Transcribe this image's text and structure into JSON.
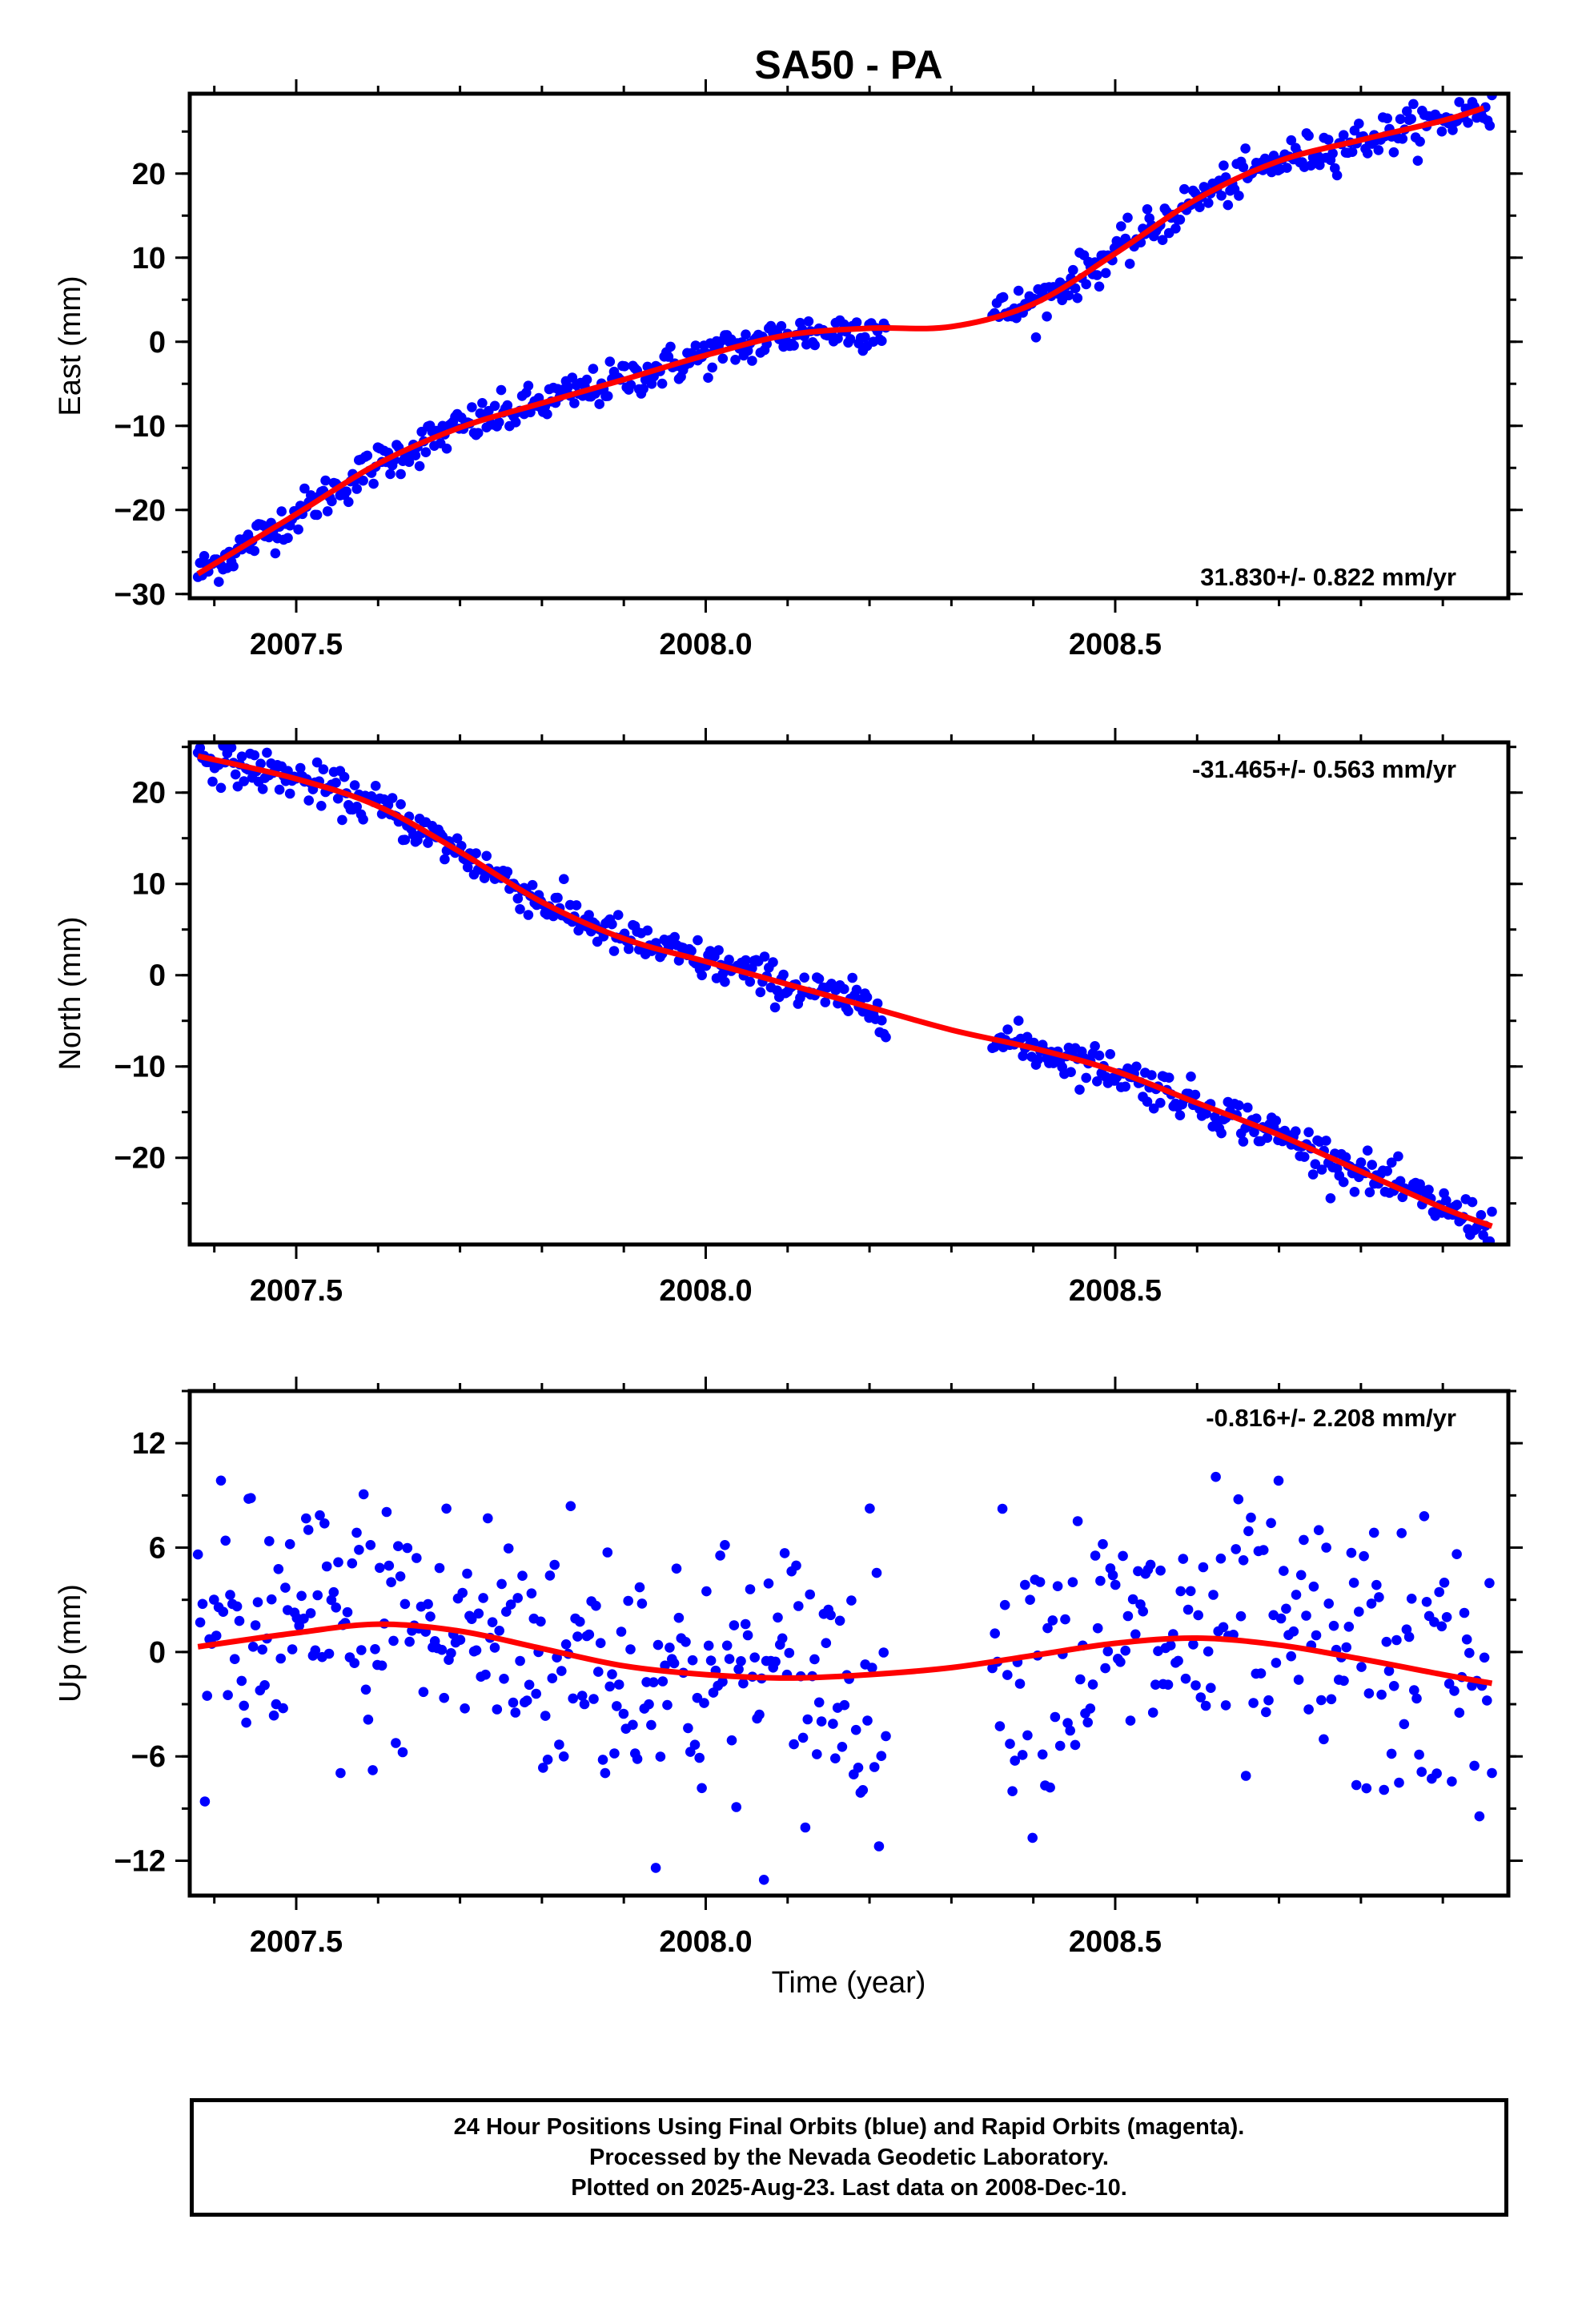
{
  "title": "SA50 - PA",
  "colors": {
    "data": "#0000ff",
    "fit": "#ff0000",
    "axis": "#000000"
  },
  "xlabel": "Time (year)",
  "caption": [
    "24 Hour Positions Using Final Orbits (blue) and Rapid Orbits (magenta).",
    "Processed by the Nevada Geodetic Laboratory.",
    "Plotted on 2025-Aug-23. Last data on 2008-Dec-10."
  ],
  "chart_data": [
    {
      "type": "scatter",
      "ylabel": "East (mm)",
      "rate_label": "31.830+/- 0.822 mm/yr",
      "xlim": [
        2007.37,
        2008.98
      ],
      "ylim": [
        -30.5,
        29.5
      ],
      "xticks": [
        "2007.5",
        "2008.0",
        "2008.5"
      ],
      "yticks": [
        "−30",
        "−20",
        "−10",
        "0",
        "10",
        "20"
      ],
      "fit": {
        "x": [
          2007.38,
          2007.5,
          2007.6,
          2007.7,
          2007.8,
          2007.9,
          2008.0,
          2008.1,
          2008.2,
          2008.3,
          2008.4,
          2008.5,
          2008.6,
          2008.7,
          2008.8,
          2008.9,
          2008.95
        ],
        "y": [
          -27.6,
          -20.5,
          -14.5,
          -10.2,
          -7.3,
          -4.5,
          -1.6,
          0.8,
          1.6,
          1.8,
          4.5,
          10.5,
          17.0,
          21.5,
          24.0,
          26.3,
          27.8
        ]
      },
      "series": [
        {
          "x": [
            2007.38,
            2008.22
          ],
          "start": -27.6,
          "end": 3.0,
          "noise": 1.2,
          "n": 330
        },
        {
          "x": [
            2008.35,
            2008.96
          ],
          "start": 3.0,
          "end": 26.5,
          "noise": 1.2,
          "n": 230
        }
      ]
    },
    {
      "type": "scatter",
      "ylabel": "North (mm)",
      "rate_label": "-31.465+/- 0.563 mm/yr",
      "xlim": [
        2007.37,
        2008.98
      ],
      "ylim": [
        -29.5,
        25.5
      ],
      "xticks": [
        "2007.5",
        "2008.0",
        "2008.5"
      ],
      "yticks": [
        "−20",
        "−10",
        "0",
        "10",
        "20"
      ],
      "fit": {
        "x": [
          2007.38,
          2007.5,
          2007.6,
          2007.7,
          2007.8,
          2007.9,
          2008.0,
          2008.1,
          2008.2,
          2008.3,
          2008.4,
          2008.5,
          2008.6,
          2008.7,
          2008.8,
          2008.9,
          2008.96
        ],
        "y": [
          24.0,
          21.5,
          18.5,
          13.5,
          8.0,
          4.0,
          1.5,
          -1.0,
          -3.5,
          -6.0,
          -8.0,
          -10.5,
          -14.0,
          -17.5,
          -21.5,
          -25.5,
          -27.5
        ]
      },
      "series": [
        {
          "x": [
            2007.38,
            2008.22
          ],
          "start": 24.0,
          "end": -4.5,
          "noise": 1.1,
          "n": 330
        },
        {
          "x": [
            2008.35,
            2008.96
          ],
          "start": -6.5,
          "end": -28.0,
          "noise": 1.1,
          "n": 230
        }
      ]
    },
    {
      "type": "scatter",
      "ylabel": "Up (mm)",
      "rate_label": "-0.816+/- 2.208 mm/yr",
      "xlim": [
        2007.37,
        2008.98
      ],
      "ylim": [
        -14,
        15
      ],
      "xticks": [
        "2007.5",
        "2008.0",
        "2008.5"
      ],
      "yticks": [
        "−12",
        "−6",
        "0",
        "6",
        "12"
      ],
      "fit": {
        "x": [
          2007.38,
          2007.5,
          2007.6,
          2007.7,
          2007.8,
          2007.9,
          2008.0,
          2008.1,
          2008.2,
          2008.3,
          2008.4,
          2008.5,
          2008.6,
          2008.7,
          2008.8,
          2008.9,
          2008.96
        ],
        "y": [
          0.3,
          1.1,
          1.6,
          1.2,
          0.2,
          -0.8,
          -1.3,
          -1.5,
          -1.3,
          -0.9,
          -0.2,
          0.5,
          0.8,
          0.4,
          -0.4,
          -1.3,
          -1.8
        ]
      },
      "series": [
        {
          "x": [
            2007.38,
            2008.22
          ],
          "start": 0.3,
          "end": -1.3,
          "noise": 4.0,
          "n": 300
        },
        {
          "x": [
            2008.35,
            2008.96
          ],
          "start": -0.5,
          "end": -1.8,
          "noise": 4.0,
          "n": 200
        }
      ]
    }
  ]
}
